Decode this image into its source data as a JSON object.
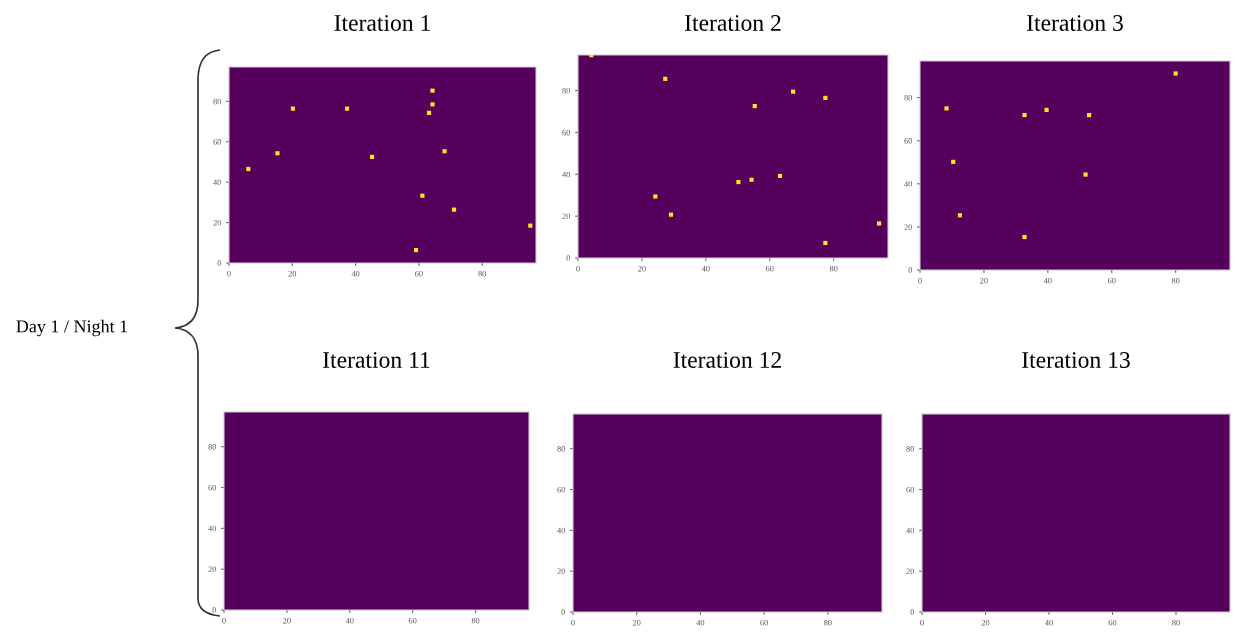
{
  "chart_data": [
    {
      "type": "scatter",
      "title": "Iteration 1",
      "x": [
        20.2,
        37.3,
        64.3,
        64.3,
        63.2,
        15.3,
        6.1,
        45.2,
        68.1,
        61.1,
        71.1,
        95.2,
        59.1
      ],
      "values": [
        76.4,
        76.4,
        85.3,
        78.5,
        74.3,
        54.3,
        46.5,
        52.5,
        55.3,
        33.3,
        26.4,
        18.5,
        6.4
      ],
      "color": "#fde725",
      "marker": "square",
      "xlim": [
        0,
        97
      ],
      "ylim": [
        0,
        97
      ],
      "xticks": [
        0,
        20,
        40,
        60,
        80
      ],
      "yticks": [
        0,
        20,
        40,
        60,
        80
      ],
      "grid": false,
      "annotations": [
        "Day 1 / Night 1"
      ]
    },
    {
      "type": "scatter",
      "title": "Iteration 2",
      "x": [
        4.2,
        27.3,
        67.3,
        77.4,
        55.3,
        50.2,
        54.3,
        63.2,
        24.2,
        29.1,
        94.2,
        77.4
      ],
      "values": [
        96.9,
        85.6,
        79.5,
        76.5,
        72.6,
        36.3,
        37.4,
        39.2,
        29.4,
        20.7,
        16.5,
        7.2
      ],
      "color": "#fde725",
      "marker": "square",
      "xlim": [
        0,
        97
      ],
      "ylim": [
        0,
        97
      ],
      "xticks": [
        0,
        20,
        40,
        60,
        80
      ],
      "yticks": [
        0,
        20,
        40,
        60,
        80
      ],
      "grid": false
    },
    {
      "type": "scatter",
      "title": "Iteration 3",
      "x": [
        80,
        8.3,
        32.7,
        39.6,
        52.9,
        10.4,
        51.8,
        12.5,
        32.7
      ],
      "values": [
        91.2,
        75.0,
        71.9,
        74.3,
        71.9,
        50.2,
        44.3,
        25.4,
        15.3
      ],
      "color": "#fde725",
      "marker": "square",
      "xlim": [
        0,
        97
      ],
      "ylim": [
        0,
        97
      ],
      "xticks": [
        0,
        20,
        40,
        60,
        80
      ],
      "yticks": [
        0,
        20,
        40,
        60,
        80
      ],
      "grid": false
    },
    {
      "type": "scatter",
      "title": "Iteration 11",
      "marker": "square",
      "xlim": [
        0,
        97
      ],
      "ylim": [
        0,
        97
      ],
      "xticks": [
        0,
        20,
        40,
        60,
        80
      ],
      "yticks": [
        0,
        20,
        40,
        60,
        80
      ],
      "grid": false
    },
    {
      "type": "scatter",
      "title": "Iteration 12",
      "marker": "square",
      "xlim": [
        0,
        97
      ],
      "ylim": [
        0,
        97
      ],
      "xticks": [
        0,
        20,
        40,
        60,
        80
      ],
      "yticks": [
        0,
        20,
        40,
        60,
        80
      ],
      "grid": false
    },
    {
      "type": "scatter",
      "title": "Iteration 13",
      "marker": "square",
      "xlim": [
        0,
        97
      ],
      "ylim": [
        0,
        97
      ],
      "xticks": [
        0,
        20,
        40,
        60,
        80
      ],
      "yticks": [
        0,
        20,
        40,
        60,
        80
      ],
      "grid": false
    }
  ]
}
